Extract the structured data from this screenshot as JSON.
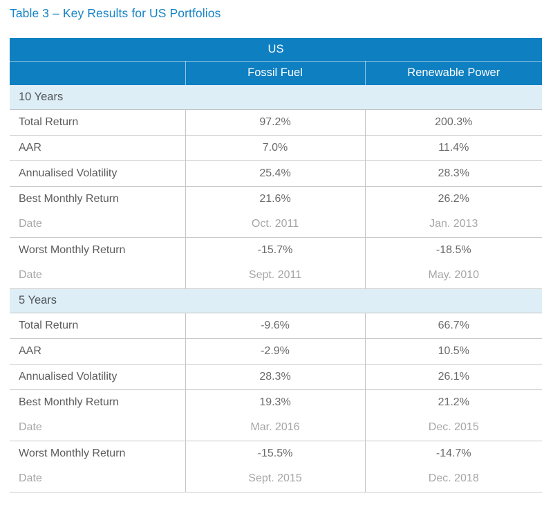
{
  "title": "Table 3 – Key Results for US Portfolios",
  "table": {
    "region": "US",
    "columns": {
      "fossil": "Fossil Fuel",
      "renewable": "Renewable Power"
    },
    "sections": [
      {
        "label": "10 Years",
        "rows": [
          {
            "label": "Total Return",
            "fossil": "97.2%",
            "renewable": "200.3%"
          },
          {
            "label": "AAR",
            "fossil": "7.0%",
            "renewable": "11.4%"
          },
          {
            "label": "Annualised Volatility",
            "fossil": "25.4%",
            "renewable": "28.3%"
          },
          {
            "label": "Best Monthly Return",
            "fossil": "21.6%",
            "renewable": "26.2%"
          },
          {
            "label": "Date",
            "fossil": "Oct. 2011",
            "renewable": "Jan. 2013"
          },
          {
            "label": "Worst Monthly Return",
            "fossil": "-15.7%",
            "renewable": "-18.5%"
          },
          {
            "label": "Date",
            "fossil": "Sept. 2011",
            "renewable": "May. 2010"
          }
        ]
      },
      {
        "label": "5 Years",
        "rows": [
          {
            "label": "Total Return",
            "fossil": "-9.6%",
            "renewable": "66.7%"
          },
          {
            "label": "AAR",
            "fossil": "-2.9%",
            "renewable": "10.5%"
          },
          {
            "label": "Annualised Volatility",
            "fossil": "28.3%",
            "renewable": "26.1%"
          },
          {
            "label": "Best Monthly Return",
            "fossil": "19.3%",
            "renewable": "21.2%"
          },
          {
            "label": "Date",
            "fossil": "Mar. 2016",
            "renewable": "Dec. 2015"
          },
          {
            "label": "Worst Monthly Return",
            "fossil": "-15.5%",
            "renewable": "-14.7%"
          },
          {
            "label": "Date",
            "fossil": "Sept. 2015",
            "renewable": "Dec. 2018"
          }
        ]
      }
    ]
  },
  "colors": {
    "header_blue": "#0e7fc1",
    "title_blue": "#1583c5",
    "section_band_blue": "#deeef7",
    "border_gray": "#c9c9c9",
    "label_text": "#5c5c5c",
    "value_text": "#6a6a6a",
    "muted_text": "#a6a6a6"
  }
}
